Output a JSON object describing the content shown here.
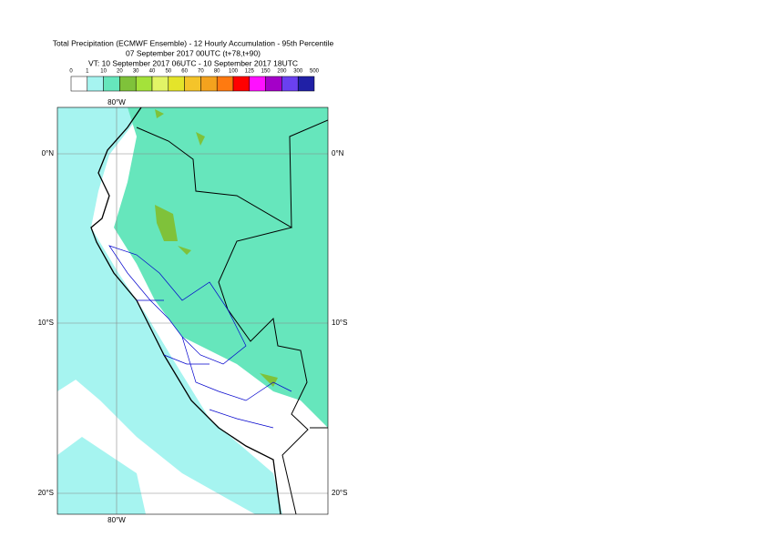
{
  "title": [
    "Total Precipitation (ECMWF Ensemble) - 12 Hourly Accumulation - 95th Percentile",
    "07 September 2017 00UTC (t+78,t+90)",
    "VT: 10 September 2017 06UTC - 10 September 2017 18UTC"
  ],
  "legend": {
    "labels": [
      0,
      1,
      10,
      20,
      30,
      40,
      50,
      60,
      70,
      80,
      100,
      125,
      150,
      200,
      300,
      500
    ],
    "colors": [
      "#ffffff",
      "#a6f4f0",
      "#66e6bc",
      "#7fc23a",
      "#a4e23a",
      "#e2f466",
      "#e4e42a",
      "#f4c42a",
      "#f4a21e",
      "#ff7a10",
      "#ff0000",
      "#ff10ff",
      "#a400c8",
      "#6a40f0",
      "#2020a6",
      "#10105a"
    ]
  },
  "map": {
    "lon_label": "80°W",
    "lat_labels": [
      "0°N",
      "10°S",
      "20°S"
    ]
  }
}
